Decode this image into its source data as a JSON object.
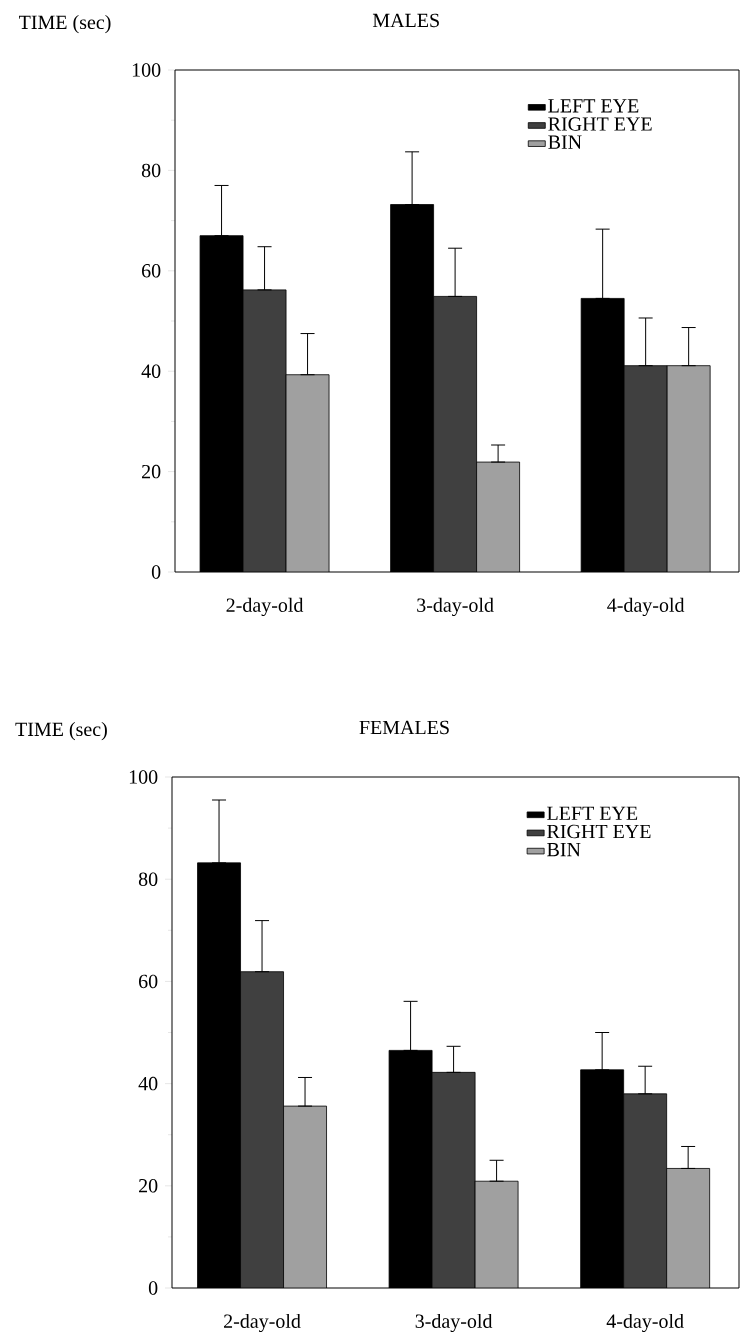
{
  "chart_data": [
    {
      "type": "bar",
      "title": "MALES",
      "ylabel": "TIME (sec)",
      "categories": [
        "2-day-old",
        "3-day-old",
        "4-day-old"
      ],
      "ylim": [
        0,
        100
      ],
      "yticks": [
        0,
        20,
        40,
        60,
        80,
        100
      ],
      "legend": "top right",
      "series": [
        {
          "name": "LEFT EYE",
          "color": "#000000",
          "values": [
            67.0,
            73.2,
            54.5
          ],
          "errors": [
            [
              67.0,
              77.0
            ],
            [
              73.2,
              83.7
            ],
            [
              54.5,
              68.3
            ]
          ]
        },
        {
          "name": "RIGHT EYE",
          "color": "#404040",
          "values": [
            56.2,
            54.9,
            41.1
          ],
          "errors": [
            [
              56.2,
              64.8
            ],
            [
              54.9,
              64.5
            ],
            [
              41.1,
              50.6
            ]
          ]
        },
        {
          "name": "BIN",
          "color": "#a0a0a0",
          "values": [
            39.3,
            21.9,
            41.1
          ],
          "errors": [
            [
              39.3,
              47.5
            ],
            [
              21.9,
              25.3
            ],
            [
              41.1,
              48.7
            ]
          ]
        }
      ]
    },
    {
      "type": "bar",
      "title": "FEMALES",
      "ylabel": "TIME (sec)",
      "categories": [
        "2-day-old",
        "3-day-old",
        "4-day-old"
      ],
      "ylim": [
        0,
        100
      ],
      "yticks": [
        0,
        20,
        40,
        60,
        80,
        100
      ],
      "legend": "top right",
      "series": [
        {
          "name": "LEFT EYE",
          "color": "#000000",
          "values": [
            83.2,
            46.5,
            42.7
          ],
          "errors": [
            [
              83.2,
              95.5
            ],
            [
              46.5,
              56.1
            ],
            [
              42.7,
              50.0
            ]
          ]
        },
        {
          "name": "RIGHT EYE",
          "color": "#404040",
          "values": [
            61.9,
            42.2,
            38.0
          ],
          "errors": [
            [
              61.9,
              71.9
            ],
            [
              42.2,
              47.3
            ],
            [
              38.0,
              43.4
            ]
          ]
        },
        {
          "name": "BIN",
          "color": "#a0a0a0",
          "values": [
            35.6,
            20.9,
            23.4
          ],
          "errors": [
            [
              35.6,
              41.2
            ],
            [
              20.9,
              25.0
            ],
            [
              23.4,
              27.7
            ]
          ]
        }
      ]
    }
  ]
}
